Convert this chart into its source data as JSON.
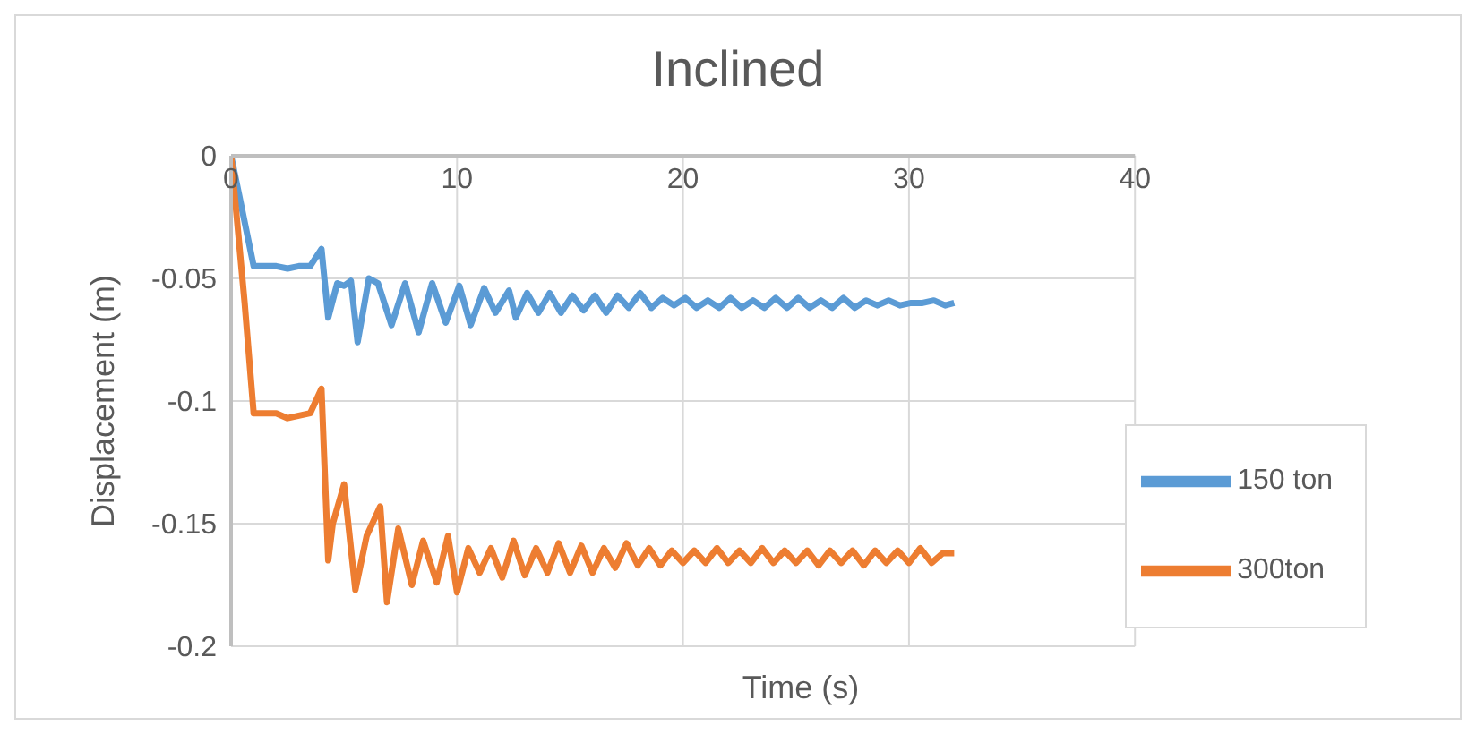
{
  "chart_data": {
    "type": "line",
    "title": "Inclined",
    "xlabel": "Time (s)",
    "ylabel": "Displacement (m)",
    "xlim": [
      0,
      40
    ],
    "xticks": [
      0,
      10,
      20,
      30,
      40
    ],
    "ylim": [
      -0.2,
      0
    ],
    "yticks": [
      -0.2,
      -0.15,
      -0.1,
      -0.05,
      0
    ],
    "grid": true,
    "legend": "bottom right",
    "marker": "none",
    "line_style": "solid",
    "series": [
      {
        "name": "150 ton",
        "color": "#5b9bd5",
        "x": [
          0,
          1,
          2,
          2.5,
          3,
          3.5,
          4,
          4.3,
          4.7,
          5,
          5.3,
          5.6,
          6.1,
          6.5,
          7.1,
          7.7,
          8.3,
          8.9,
          9.5,
          10.1,
          10.6,
          11.2,
          11.7,
          12.3,
          12.6,
          13.1,
          13.6,
          14.1,
          14.6,
          15.1,
          15.6,
          16.1,
          16.6,
          17.1,
          17.6,
          18.1,
          18.6,
          19.1,
          19.6,
          20.1,
          20.6,
          21.1,
          21.6,
          22.1,
          22.6,
          23.1,
          23.6,
          24.1,
          24.6,
          25.1,
          25.6,
          26.1,
          26.6,
          27.1,
          27.6,
          28.1,
          28.6,
          29.1,
          29.6,
          30.1,
          30.6,
          31.1,
          31.6,
          32
        ],
        "values": [
          0,
          -0.045,
          -0.045,
          -0.046,
          -0.045,
          -0.045,
          -0.038,
          -0.066,
          -0.052,
          -0.053,
          -0.051,
          -0.076,
          -0.05,
          -0.052,
          -0.069,
          -0.052,
          -0.072,
          -0.052,
          -0.068,
          -0.053,
          -0.069,
          -0.054,
          -0.064,
          -0.055,
          -0.066,
          -0.056,
          -0.064,
          -0.056,
          -0.064,
          -0.057,
          -0.063,
          -0.057,
          -0.064,
          -0.057,
          -0.062,
          -0.056,
          -0.062,
          -0.058,
          -0.061,
          -0.058,
          -0.062,
          -0.059,
          -0.062,
          -0.058,
          -0.062,
          -0.059,
          -0.062,
          -0.058,
          -0.062,
          -0.058,
          -0.062,
          -0.059,
          -0.062,
          -0.058,
          -0.062,
          -0.059,
          -0.061,
          -0.059,
          -0.061,
          -0.06,
          -0.06,
          -0.059,
          -0.061,
          -0.06
        ]
      },
      {
        "name": "300ton",
        "color": "#ed7d31",
        "x": [
          0,
          0.3,
          0.6,
          1,
          2,
          2.5,
          3,
          3.5,
          4,
          4.3,
          4.5,
          5,
          5.5,
          6,
          6.6,
          6.9,
          7.4,
          8,
          8.5,
          9.1,
          9.6,
          10,
          10.5,
          11,
          11.5,
          12,
          12.5,
          13,
          13.5,
          14,
          14.5,
          15,
          15.5,
          16,
          16.5,
          17,
          17.5,
          18,
          18.5,
          19,
          19.5,
          20,
          20.5,
          21,
          21.5,
          22,
          22.5,
          23,
          23.5,
          24,
          24.5,
          25,
          25.5,
          26,
          26.5,
          27,
          27.5,
          28,
          28.5,
          29,
          29.5,
          30,
          30.5,
          31,
          31.5,
          32
        ],
        "values": [
          0,
          -0.03,
          -0.06,
          -0.105,
          -0.105,
          -0.107,
          -0.106,
          -0.105,
          -0.095,
          -0.165,
          -0.15,
          -0.134,
          -0.177,
          -0.155,
          -0.143,
          -0.182,
          -0.152,
          -0.175,
          -0.157,
          -0.174,
          -0.155,
          -0.178,
          -0.16,
          -0.17,
          -0.16,
          -0.172,
          -0.157,
          -0.171,
          -0.16,
          -0.17,
          -0.158,
          -0.17,
          -0.159,
          -0.17,
          -0.16,
          -0.168,
          -0.158,
          -0.167,
          -0.16,
          -0.167,
          -0.161,
          -0.166,
          -0.161,
          -0.166,
          -0.16,
          -0.166,
          -0.161,
          -0.166,
          -0.16,
          -0.166,
          -0.161,
          -0.166,
          -0.161,
          -0.167,
          -0.161,
          -0.166,
          -0.161,
          -0.167,
          -0.161,
          -0.166,
          -0.161,
          -0.166,
          -0.16,
          -0.166,
          -0.162,
          -0.162
        ]
      }
    ]
  }
}
